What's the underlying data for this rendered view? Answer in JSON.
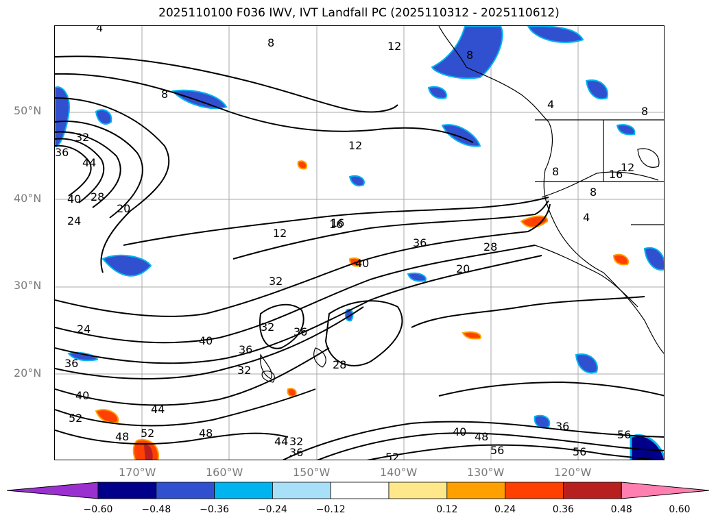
{
  "title": "2025110100 F036 IWV, IVT Landfall PC (2025110312 - 2025110612)",
  "lat_labels": [
    "50°N",
    "40°N",
    "30°N",
    "20°N"
  ],
  "lon_labels": [
    "170°W",
    "160°W",
    "150°W",
    "140°W",
    "130°W",
    "120°W"
  ],
  "colorbar": {
    "tick_labels": [
      "−0.60",
      "−0.48",
      "−0.36",
      "−0.24",
      "−0.12",
      "0.12",
      "0.24",
      "0.36",
      "0.48",
      "0.60"
    ],
    "colors": [
      "#9b30d0",
      "#00008b",
      "#3050d0",
      "#00b4f0",
      "#a8e0f8",
      "#ffffff",
      "#ffe88a",
      "#ffa000",
      "#ff4000",
      "#b82020",
      "#ff80b0"
    ]
  },
  "contour_labels": [
    "4",
    "8",
    "8",
    "8",
    "12",
    "12",
    "8",
    "4",
    "8",
    "16",
    "12",
    "16",
    "8",
    "4",
    "44",
    "32",
    "36",
    "40",
    "28",
    "24",
    "20",
    "12",
    "16",
    "36",
    "28",
    "20",
    "40",
    "32",
    "24",
    "36",
    "40",
    "32",
    "36",
    "36",
    "32",
    "28",
    "40",
    "44",
    "52",
    "48",
    "52",
    "48",
    "44",
    "32",
    "36",
    "40",
    "48",
    "36",
    "56",
    "56",
    "56",
    "52"
  ]
}
